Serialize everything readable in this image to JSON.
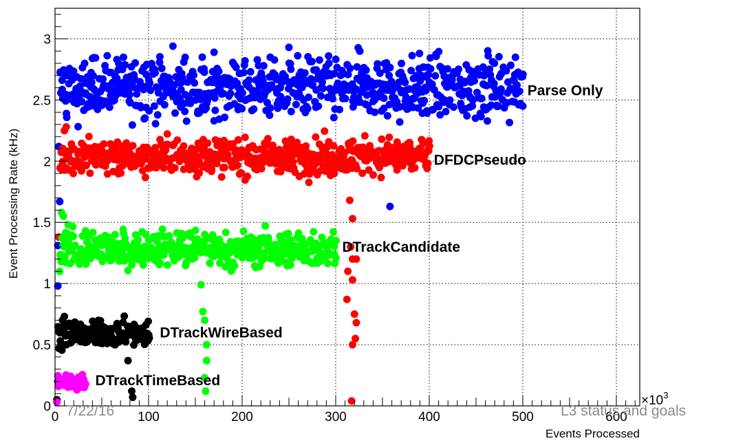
{
  "chart_data": {
    "type": "scatter",
    "xlabel": "Events Processed",
    "ylabel": "Event Processing Rate (kHz)",
    "x_multiplier_label": "×10",
    "x_multiplier_exp": "3",
    "xlim": [
      0,
      625
    ],
    "ylim": [
      0,
      3.25
    ],
    "x_ticks": [
      "0",
      "100",
      "200",
      "300",
      "400",
      "500",
      "600"
    ],
    "y_ticks": [
      "0",
      "0.5",
      "1",
      "1.5",
      "2",
      "2.5",
      "3"
    ],
    "grid": true,
    "series": [
      {
        "name": "Parse Only",
        "color": "#0000ff",
        "x_range": [
          5,
          500
        ],
        "y_center": 2.6,
        "y_spread": 0.12,
        "points": [
          [
            126,
            2.94
          ],
          [
            250,
            2.93
          ],
          [
            170,
            2.89
          ],
          [
            230,
            2.85
          ],
          [
            98,
            2.79
          ],
          [
            40,
            2.84
          ],
          [
            160,
            2.42
          ],
          [
            270,
            2.43
          ],
          [
            170,
            2.33
          ],
          [
            358,
            1.63
          ],
          [
            5,
            1.67
          ],
          [
            3,
            1.31
          ],
          [
            3,
            0.98
          ],
          [
            4,
            2.12
          ],
          [
            500,
            2.45
          ],
          [
            360,
            2.63
          ]
        ]
      },
      {
        "name": "DFDCPseudo",
        "color": "#ff0000",
        "x_range": [
          5,
          400
        ],
        "y_center": 2.04,
        "y_spread": 0.07,
        "points": [
          [
            315,
            1.68
          ],
          [
            318,
            1.53
          ],
          [
            316,
            1.3
          ],
          [
            318,
            1.2
          ],
          [
            322,
            1.2
          ],
          [
            313,
            1.1
          ],
          [
            318,
            1.03
          ],
          [
            312,
            0.87
          ],
          [
            320,
            0.75
          ],
          [
            322,
            0.68
          ],
          [
            321,
            0.55
          ],
          [
            318,
            0.5
          ],
          [
            317,
            0.04
          ],
          [
            4,
            1.38
          ],
          [
            6,
            1.95
          ],
          [
            12,
            2.28
          ],
          [
            10,
            2.25
          ]
        ]
      },
      {
        "name": "DTrackCandidate",
        "color": "#00ff00",
        "x_range": [
          5,
          300
        ],
        "y_center": 1.28,
        "y_spread": 0.07,
        "points": [
          [
            156,
            0.99
          ],
          [
            158,
            0.77
          ],
          [
            160,
            0.7
          ],
          [
            162,
            0.5
          ],
          [
            162,
            0.37
          ],
          [
            160,
            0.23
          ],
          [
            161,
            0.12
          ],
          [
            7,
            1.58
          ],
          [
            9,
            1.55
          ],
          [
            14,
            1.48
          ],
          [
            5,
            1.1
          ]
        ]
      },
      {
        "name": "DTrackWireBased",
        "color": "#000000",
        "x_range": [
          3,
          100
        ],
        "y_center": 0.59,
        "y_spread": 0.05,
        "points": [
          [
            78,
            0.37
          ],
          [
            82,
            0.12
          ],
          [
            83,
            0.07
          ],
          [
            8,
            0.7
          ],
          [
            10,
            0.73
          ],
          [
            3,
            0.2
          ],
          [
            2,
            0.05
          ]
        ]
      },
      {
        "name": "DTrackTimeBased",
        "color": "#ff00ff",
        "x_range": [
          3,
          32
        ],
        "y_center": 0.2,
        "y_spread": 0.03,
        "points": [
          [
            2,
            0.03
          ]
        ]
      }
    ]
  },
  "footer": {
    "date": "7/22/16",
    "title": "L3 status and goals"
  }
}
